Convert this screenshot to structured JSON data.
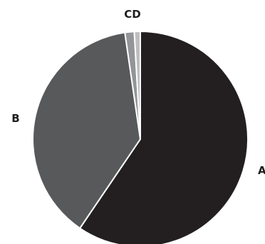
{
  "chart_data": {
    "type": "pie",
    "title": "",
    "start_angle_deg": 0,
    "direction": "clockwise",
    "slices": [
      {
        "label": "A",
        "value": 59.5,
        "color": "#231f20"
      },
      {
        "label": "B",
        "value": 38.2,
        "color": "#58595b"
      },
      {
        "label": "C",
        "value": 1.4,
        "color": "#939598"
      },
      {
        "label": "D",
        "value": 0.9,
        "color": "#bcbec0"
      }
    ],
    "combined_labels": [
      "CD"
    ],
    "legend": "none"
  }
}
